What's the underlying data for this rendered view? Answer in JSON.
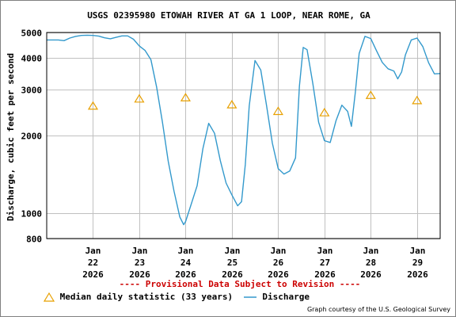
{
  "chart_data": {
    "type": "line",
    "title": "USGS 02395980 ETOWAH RIVER AT GA 1 LOOP, NEAR ROME, GA",
    "ylabel": "Discharge, cubic feet per second",
    "xlabel": "",
    "yscale": "log",
    "ylim": [
      800,
      5000
    ],
    "xlim": [
      "2026-01-21",
      "2026-01-29T12:00"
    ],
    "yticks": [
      800,
      1000,
      2000,
      3000,
      4000,
      5000
    ],
    "xticks": [
      {
        "date": "2026-01-22",
        "label": [
          "Jan",
          "22",
          "2026"
        ]
      },
      {
        "date": "2026-01-23",
        "label": [
          "Jan",
          "23",
          "2026"
        ]
      },
      {
        "date": "2026-01-24",
        "label": [
          "Jan",
          "24",
          "2026"
        ]
      },
      {
        "date": "2026-01-25",
        "label": [
          "Jan",
          "25",
          "2026"
        ]
      },
      {
        "date": "2026-01-26",
        "label": [
          "Jan",
          "26",
          "2026"
        ]
      },
      {
        "date": "2026-01-27",
        "label": [
          "Jan",
          "27",
          "2026"
        ]
      },
      {
        "date": "2026-01-28",
        "label": [
          "Jan",
          "28",
          "2026"
        ]
      },
      {
        "date": "2026-01-29",
        "label": [
          "Jan",
          "29",
          "2026"
        ]
      }
    ],
    "grid": true,
    "series": [
      {
        "name": "Median daily statistic (33 years)",
        "kind": "marker",
        "color": "#e8a000",
        "points": [
          {
            "x": "2026-01-22",
            "y": 2600
          },
          {
            "x": "2026-01-23",
            "y": 2770
          },
          {
            "x": "2026-01-24",
            "y": 2800
          },
          {
            "x": "2026-01-25",
            "y": 2630
          },
          {
            "x": "2026-01-26",
            "y": 2480
          },
          {
            "x": "2026-01-27",
            "y": 2450
          },
          {
            "x": "2026-01-28",
            "y": 2860
          },
          {
            "x": "2026-01-29",
            "y": 2730
          }
        ]
      },
      {
        "name": "Discharge",
        "kind": "line",
        "color": "#3399cc",
        "points": [
          {
            "x": "2026-01-21T00:00",
            "y": 4680
          },
          {
            "x": "2026-01-21T06:00",
            "y": 4680
          },
          {
            "x": "2026-01-21T09:00",
            "y": 4650
          },
          {
            "x": "2026-01-21T12:00",
            "y": 4760
          },
          {
            "x": "2026-01-21T15:00",
            "y": 4830
          },
          {
            "x": "2026-01-21T18:00",
            "y": 4870
          },
          {
            "x": "2026-01-21T21:00",
            "y": 4880
          },
          {
            "x": "2026-01-22T00:00",
            "y": 4870
          },
          {
            "x": "2026-01-22T03:00",
            "y": 4840
          },
          {
            "x": "2026-01-22T06:00",
            "y": 4770
          },
          {
            "x": "2026-01-22T09:00",
            "y": 4730
          },
          {
            "x": "2026-01-22T12:00",
            "y": 4790
          },
          {
            "x": "2026-01-22T15:00",
            "y": 4850
          },
          {
            "x": "2026-01-22T18:00",
            "y": 4850
          },
          {
            "x": "2026-01-22T21:00",
            "y": 4710
          },
          {
            "x": "2026-01-23T00:00",
            "y": 4440
          },
          {
            "x": "2026-01-23T03:00",
            "y": 4260
          },
          {
            "x": "2026-01-23T06:00",
            "y": 3930
          },
          {
            "x": "2026-01-23T09:00",
            "y": 3070
          },
          {
            "x": "2026-01-23T12:00",
            "y": 2250
          },
          {
            "x": "2026-01-23T15:00",
            "y": 1590
          },
          {
            "x": "2026-01-23T18:00",
            "y": 1220
          },
          {
            "x": "2026-01-23T21:00",
            "y": 970
          },
          {
            "x": "2026-01-23T23:00",
            "y": 905
          },
          {
            "x": "2026-01-24T00:00",
            "y": 930
          },
          {
            "x": "2026-01-24T03:00",
            "y": 1090
          },
          {
            "x": "2026-01-24T06:00",
            "y": 1280
          },
          {
            "x": "2026-01-24T09:00",
            "y": 1780
          },
          {
            "x": "2026-01-24T12:00",
            "y": 2230
          },
          {
            "x": "2026-01-24T15:00",
            "y": 2040
          },
          {
            "x": "2026-01-24T18:00",
            "y": 1600
          },
          {
            "x": "2026-01-24T21:00",
            "y": 1310
          },
          {
            "x": "2026-01-25T00:00",
            "y": 1180
          },
          {
            "x": "2026-01-25T03:00",
            "y": 1070
          },
          {
            "x": "2026-01-25T05:00",
            "y": 1110
          },
          {
            "x": "2026-01-25T07:00",
            "y": 1550
          },
          {
            "x": "2026-01-25T09:00",
            "y": 2600
          },
          {
            "x": "2026-01-25T12:00",
            "y": 3900
          },
          {
            "x": "2026-01-25T15:00",
            "y": 3580
          },
          {
            "x": "2026-01-25T18:00",
            "y": 2610
          },
          {
            "x": "2026-01-25T21:00",
            "y": 1870
          },
          {
            "x": "2026-01-26T00:00",
            "y": 1490
          },
          {
            "x": "2026-01-26T03:00",
            "y": 1420
          },
          {
            "x": "2026-01-26T06:00",
            "y": 1460
          },
          {
            "x": "2026-01-26T09:00",
            "y": 1640
          },
          {
            "x": "2026-01-26T11:00",
            "y": 3100
          },
          {
            "x": "2026-01-26T13:00",
            "y": 4380
          },
          {
            "x": "2026-01-26T15:00",
            "y": 4290
          },
          {
            "x": "2026-01-26T18:00",
            "y": 3170
          },
          {
            "x": "2026-01-26T21:00",
            "y": 2250
          },
          {
            "x": "2026-01-27T00:00",
            "y": 1910
          },
          {
            "x": "2026-01-27T03:00",
            "y": 1880
          },
          {
            "x": "2026-01-27T06:00",
            "y": 2280
          },
          {
            "x": "2026-01-27T09:00",
            "y": 2620
          },
          {
            "x": "2026-01-27T12:00",
            "y": 2480
          },
          {
            "x": "2026-01-27T14:00",
            "y": 2170
          },
          {
            "x": "2026-01-27T16:00",
            "y": 2930
          },
          {
            "x": "2026-01-27T18:00",
            "y": 4150
          },
          {
            "x": "2026-01-27T21:00",
            "y": 4830
          },
          {
            "x": "2026-01-28T00:00",
            "y": 4740
          },
          {
            "x": "2026-01-28T03:00",
            "y": 4250
          },
          {
            "x": "2026-01-28T06:00",
            "y": 3830
          },
          {
            "x": "2026-01-28T09:00",
            "y": 3620
          },
          {
            "x": "2026-01-28T12:00",
            "y": 3550
          },
          {
            "x": "2026-01-28T14:00",
            "y": 3310
          },
          {
            "x": "2026-01-28T16:00",
            "y": 3520
          },
          {
            "x": "2026-01-28T18:00",
            "y": 4100
          },
          {
            "x": "2026-01-28T21:00",
            "y": 4680
          },
          {
            "x": "2026-01-29T00:00",
            "y": 4760
          },
          {
            "x": "2026-01-29T03:00",
            "y": 4410
          },
          {
            "x": "2026-01-29T06:00",
            "y": 3820
          },
          {
            "x": "2026-01-29T09:00",
            "y": 3460
          },
          {
            "x": "2026-01-29T12:00",
            "y": 3470
          }
        ]
      }
    ]
  },
  "provisional_notice": "---- Provisional Data Subject to Revision ----",
  "legend": {
    "median_label": "Median daily statistic (33 years)",
    "discharge_label": "Discharge"
  },
  "courtesy": "Graph courtesy of the U.S. Geological Survey",
  "colors": {
    "median_marker": "#e8a000",
    "discharge_line": "#3399cc",
    "provisional": "#cc0000",
    "grid": "#c0c0c0"
  }
}
